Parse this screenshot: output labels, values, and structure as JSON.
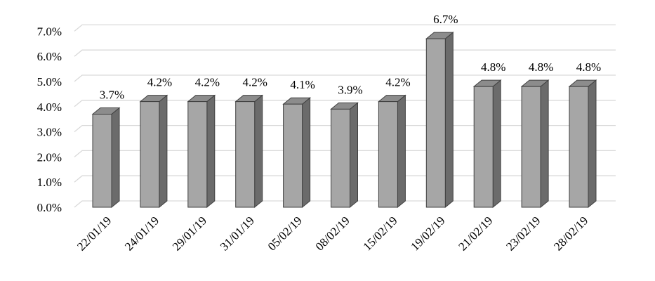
{
  "chart_data": {
    "type": "bar",
    "title": "",
    "xlabel": "",
    "ylabel": "",
    "categories": [
      "22/01/19",
      "24/01/19",
      "29/01/19",
      "31/01/19",
      "05/02/19",
      "08/02/19",
      "15/02/19",
      "19/02/19",
      "21/02/19",
      "23/02/19",
      "28/02/19"
    ],
    "values": [
      3.7,
      4.2,
      4.2,
      4.2,
      4.1,
      3.9,
      4.2,
      6.7,
      4.8,
      4.8,
      4.8
    ],
    "data_labels": [
      "3.7%",
      "4.2%",
      "4.2%",
      "4.2%",
      "4.1%",
      "3.9%",
      "4.2%",
      "6.7%",
      "4.8%",
      "4.8%",
      "4.8%"
    ],
    "y_ticks": [
      0,
      1,
      2,
      3,
      4,
      5,
      6,
      7
    ],
    "y_tick_labels": [
      "0.0%",
      "1.0%",
      "2.0%",
      "3.0%",
      "4.0%",
      "5.0%",
      "6.0%",
      "7.0%"
    ],
    "ylim": [
      0,
      7
    ],
    "grid": true,
    "legend": "none",
    "style": "3d-column",
    "colors": {
      "bar_front": "#a6a6a6",
      "bar_side": "#6b6b6b",
      "bar_top": "#8c8c8c",
      "bar_edge": "#404040",
      "grid": "#d9d9d9"
    }
  }
}
